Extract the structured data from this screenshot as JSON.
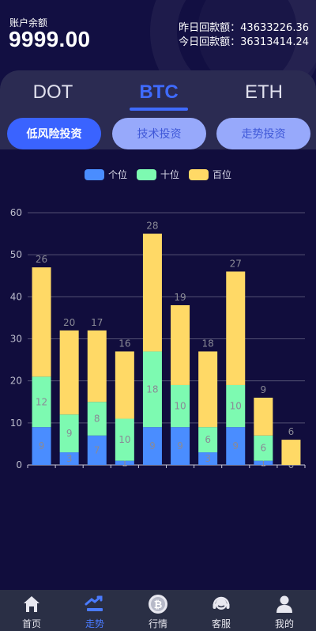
{
  "account": {
    "label": "账户余额",
    "balance": "9999.00",
    "yesterday": "昨日回款额：43633226.36",
    "today": "今日回款额：36313414.24"
  },
  "coin_tabs": [
    {
      "label": "DOT",
      "active": false
    },
    {
      "label": "BTC",
      "active": true
    },
    {
      "label": "ETH",
      "active": false
    }
  ],
  "strategy_tabs": [
    {
      "label": "低风险投资",
      "active": true
    },
    {
      "label": "技术投资",
      "active": false
    },
    {
      "label": "走势投资",
      "active": false
    }
  ],
  "colors": {
    "ones": "#4a8dff",
    "tens": "#7dfab1",
    "hundreds": "#ffd966",
    "accent": "#3f6bff"
  },
  "chart_data": {
    "type": "bar",
    "stacked": true,
    "legend_position": "top",
    "grid": true,
    "ylim": [
      0,
      60
    ],
    "yticks": [
      0,
      10,
      20,
      30,
      40,
      50,
      60
    ],
    "categories": [
      "",
      "",
      "",
      "",
      "",
      "",
      "",
      "",
      "",
      ""
    ],
    "series": [
      {
        "name": "个位",
        "color": "#4a8dff",
        "values": [
          9,
          3,
          7,
          1,
          9,
          9,
          3,
          9,
          1,
          0
        ]
      },
      {
        "name": "十位",
        "color": "#7dfab1",
        "values": [
          12,
          9,
          8,
          10,
          18,
          10,
          6,
          10,
          6,
          0
        ]
      },
      {
        "name": "百位",
        "color": "#ffd966",
        "values": [
          26,
          20,
          17,
          16,
          28,
          19,
          18,
          27,
          9,
          6
        ]
      }
    ]
  },
  "nav": [
    {
      "label": "首页",
      "icon": "home-icon",
      "active": false
    },
    {
      "label": "走势",
      "icon": "trend-icon",
      "active": true
    },
    {
      "label": "行情",
      "icon": "bitcoin-icon",
      "active": false
    },
    {
      "label": "客服",
      "icon": "headset-icon",
      "active": false
    },
    {
      "label": "我的",
      "icon": "user-icon",
      "active": false
    }
  ]
}
